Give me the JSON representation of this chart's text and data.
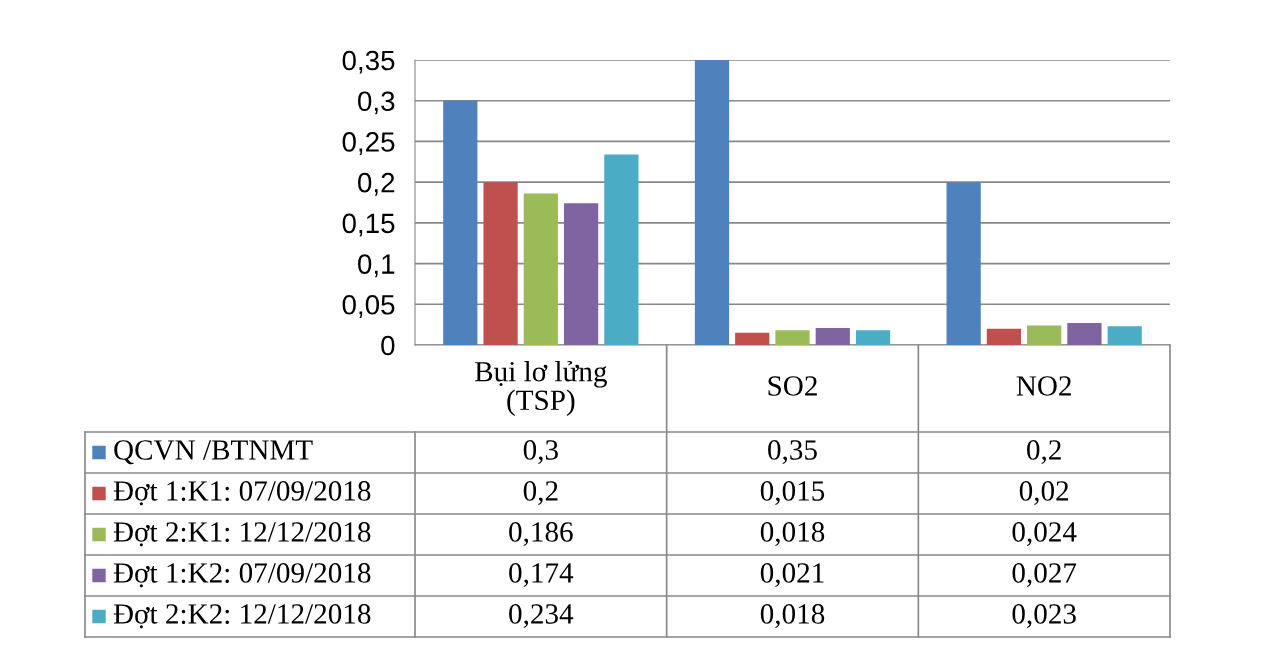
{
  "chart_data": {
    "type": "bar",
    "categories": [
      "Bụi lơ lửng\n(TSP)",
      "SO2",
      "NO2"
    ],
    "series": [
      {
        "name": "QCVN /BTNMT",
        "color": "#4f81bd",
        "values": [
          0.3,
          0.35,
          0.2
        ],
        "value_labels": [
          "0,3",
          "0,35",
          "0,2"
        ]
      },
      {
        "name": "Đợt 1:K1: 07/09/2018",
        "color": "#c0504d",
        "values": [
          0.2,
          0.015,
          0.02
        ],
        "value_labels": [
          "0,2",
          "0,015",
          "0,02"
        ]
      },
      {
        "name": "Đợt 2:K1: 12/12/2018",
        "color": "#9bbb59",
        "values": [
          0.186,
          0.018,
          0.024
        ],
        "value_labels": [
          "0,186",
          "0,018",
          "0,024"
        ]
      },
      {
        "name": "Đợt 1:K2: 07/09/2018",
        "color": "#8064a2",
        "values": [
          0.174,
          0.021,
          0.027
        ],
        "value_labels": [
          "0,174",
          "0,021",
          "0,027"
        ]
      },
      {
        "name": "Đợt 2:K2: 12/12/2018",
        "color": "#4bacc6",
        "values": [
          0.234,
          0.018,
          0.023
        ],
        "value_labels": [
          "0,234",
          "0,018",
          "0,023"
        ]
      }
    ],
    "ylim": [
      0,
      0.35
    ],
    "yticks": [
      {
        "value": 0,
        "label": "0"
      },
      {
        "value": 0.05,
        "label": "0,05"
      },
      {
        "value": 0.1,
        "label": "0,1"
      },
      {
        "value": 0.15,
        "label": "0,15"
      },
      {
        "value": 0.2,
        "label": "0,2"
      },
      {
        "value": 0.25,
        "label": "0,25"
      },
      {
        "value": 0.3,
        "label": "0,3"
      },
      {
        "value": 0.35,
        "label": "0,35"
      }
    ],
    "grid": "y",
    "legend": "bottom"
  }
}
